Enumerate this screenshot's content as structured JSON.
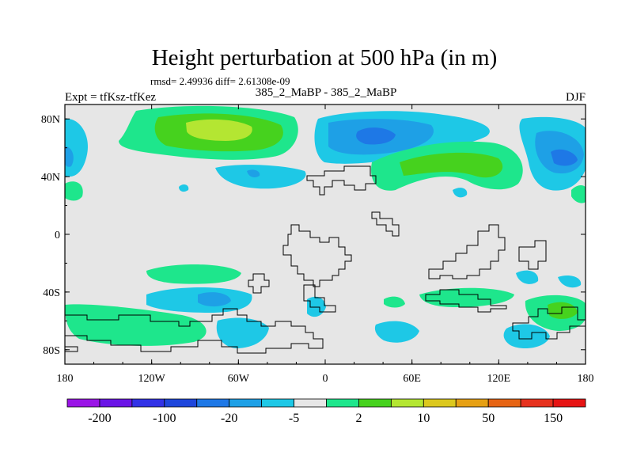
{
  "chart_data": {
    "type": "heatmap",
    "title": "Height perturbation at 500 hPa (in m)",
    "stats_label": "rmsd= 2.49936 diff= 2.61308e-09",
    "left_label": "Expt = tfKsz-tfKez",
    "center_label": "385_2_MaBP - 385_2_MaBP",
    "right_label": "DJF",
    "xlabel": "",
    "ylabel": "",
    "x_ticks": [
      {
        "value": -180,
        "label": "180"
      },
      {
        "value": -120,
        "label": "120W"
      },
      {
        "value": -60,
        "label": "60W"
      },
      {
        "value": 0,
        "label": "0"
      },
      {
        "value": 60,
        "label": "60E"
      },
      {
        "value": 120,
        "label": "120E"
      },
      {
        "value": 180,
        "label": "180"
      }
    ],
    "y_ticks": [
      {
        "value": 80,
        "label": "80N"
      },
      {
        "value": 40,
        "label": "40N"
      },
      {
        "value": 0,
        "label": "0"
      },
      {
        "value": -40,
        "label": "40S"
      },
      {
        "value": -80,
        "label": "80S"
      }
    ],
    "xlim": [
      -180,
      180
    ],
    "ylim": [
      -90,
      90
    ],
    "colorbar": {
      "colors": [
        "#9a14e6",
        "#6a14e6",
        "#3232e6",
        "#1e46dc",
        "#1e78e6",
        "#1ea0e6",
        "#1ec8e6",
        "#e6e6e6",
        "#1ee68c",
        "#46d21e",
        "#b4e632",
        "#dcc81e",
        "#e6a014",
        "#e66414",
        "#e6321e",
        "#e61414"
      ],
      "labels": [
        "-200",
        "-100",
        "-20",
        "-5",
        "2",
        "10",
        "50",
        "150"
      ]
    },
    "colors": {
      "background_field": "#e6e6e6",
      "blue_light": "#1ec8e6",
      "blue_mid": "#1ea0e6",
      "blue_dark": "#1e78e6",
      "green": "#1ee68c",
      "green_dark": "#46d21e",
      "yellow_green": "#b4e632",
      "coastline": "#000000"
    }
  }
}
